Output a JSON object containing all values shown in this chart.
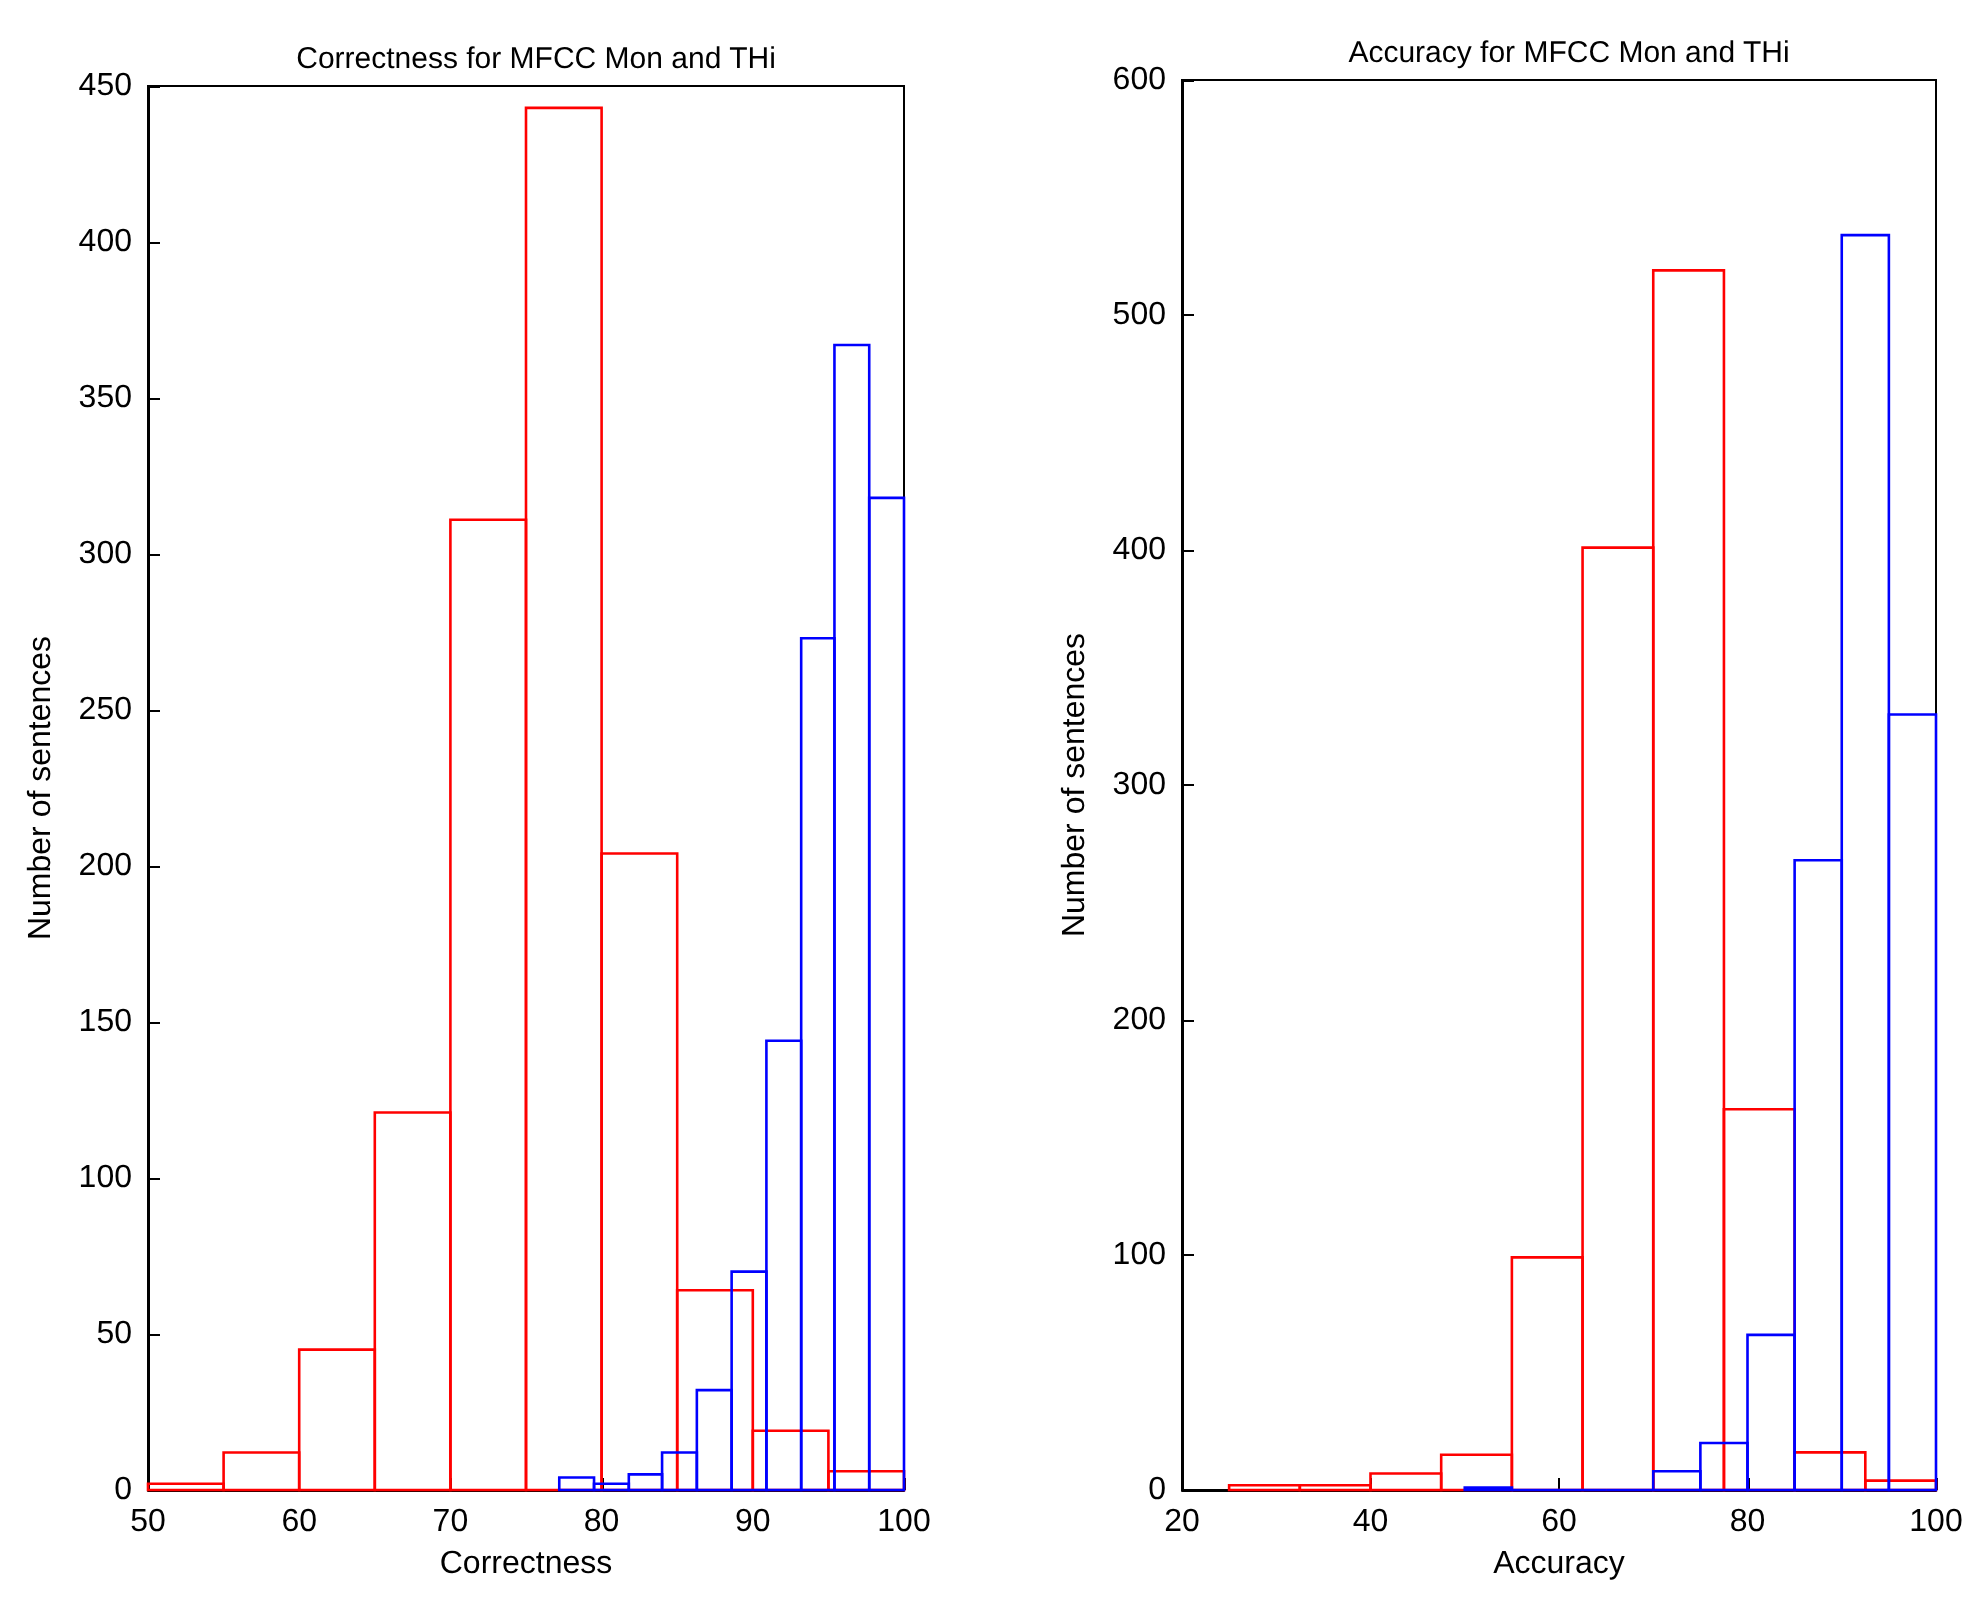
{
  "chart_data": [
    {
      "type": "histogram",
      "title": "Correctness for MFCC Mon and THi",
      "xlabel": "Correctness",
      "ylabel": "Number of sentences",
      "xlim": [
        50,
        100
      ],
      "xticks": [
        50,
        60,
        70,
        80,
        90,
        100
      ],
      "ylim": [
        0,
        450
      ],
      "yticks": [
        0,
        50,
        100,
        150,
        200,
        250,
        300,
        350,
        400,
        450
      ],
      "bins": [
        50,
        55,
        60,
        65,
        70,
        75,
        80,
        85,
        90,
        95,
        100
      ],
      "series": [
        {
          "color": "#ff0000",
          "values": [
            2,
            12,
            45,
            121,
            311,
            443,
            204,
            64,
            19,
            6
          ]
        },
        {
          "color": "#0000ff",
          "bins": [
            77.2,
            79.5,
            81.8,
            84.0,
            86.3,
            88.6,
            90.9,
            93.2,
            95.4,
            97.7,
            100
          ],
          "values": [
            4,
            2,
            5,
            12,
            32,
            70,
            144,
            273,
            367,
            318
          ]
        }
      ]
    },
    {
      "type": "histogram",
      "title": "Accuracy for MFCC Mon and THi",
      "xlabel": "Accuracy",
      "ylabel": "Number of sentences",
      "xlim": [
        20,
        100
      ],
      "xticks": [
        20,
        40,
        60,
        80,
        100
      ],
      "ylim": [
        0,
        600
      ],
      "yticks": [
        0,
        100,
        200,
        300,
        400,
        500,
        600
      ],
      "bins": [
        25,
        32.5,
        40,
        47.5,
        55,
        62.5,
        70,
        77.5,
        85,
        92.5,
        100
      ],
      "series": [
        {
          "color": "#ff0000",
          "values": [
            2,
            2,
            7,
            15,
            99,
            401,
            519,
            162,
            16,
            4
          ]
        },
        {
          "color": "#0000ff",
          "bins": [
            50,
            55,
            60,
            65,
            70,
            75,
            80,
            85,
            90,
            95,
            100
          ],
          "values": [
            1,
            0,
            0,
            0,
            8,
            20,
            66,
            268,
            534,
            330
          ]
        }
      ]
    }
  ]
}
